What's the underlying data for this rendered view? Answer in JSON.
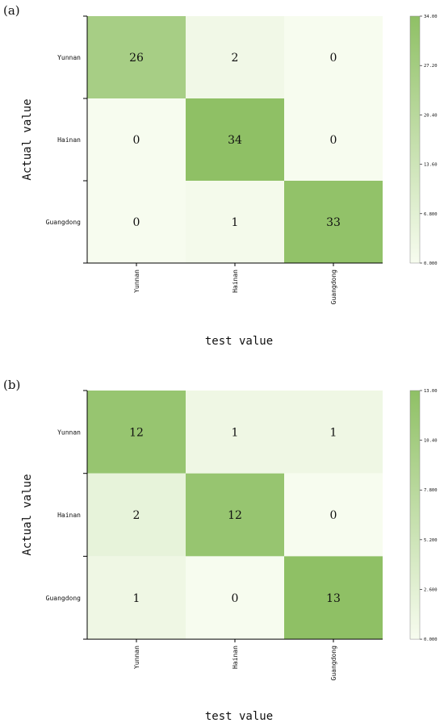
{
  "colors": {
    "low": "#f7fcef",
    "high": "#8fc065",
    "text": "#111111",
    "axis": "#000000"
  },
  "chart_data": [
    {
      "type": "heatmap",
      "panel_label": "(a)",
      "xlabel": "test value",
      "ylabel": "Actual value",
      "x_categories": [
        "Yunnan",
        "Hainan",
        "Guangdong"
      ],
      "y_categories": [
        "Yunnan",
        "Hainan",
        "Guangdong"
      ],
      "values": [
        [
          26,
          2,
          0
        ],
        [
          0,
          34,
          0
        ],
        [
          0,
          1,
          33
        ]
      ],
      "colorbar": {
        "min": 0,
        "max": 34,
        "ticks": [
          "0.000",
          "6.800",
          "13.60",
          "20.40",
          "27.20",
          "34.00"
        ]
      }
    },
    {
      "type": "heatmap",
      "panel_label": "(b)",
      "xlabel": "test value",
      "ylabel": "Actual value",
      "x_categories": [
        "Yunnan",
        "Hainan",
        "Guangdong"
      ],
      "y_categories": [
        "Yunnan",
        "Hainan",
        "Guangdong"
      ],
      "values": [
        [
          12,
          1,
          1
        ],
        [
          2,
          12,
          0
        ],
        [
          1,
          0,
          13
        ]
      ],
      "colorbar": {
        "min": 0,
        "max": 13,
        "ticks": [
          "0.000",
          "2.600",
          "5.200",
          "7.800",
          "10.40",
          "13.00"
        ]
      }
    }
  ]
}
